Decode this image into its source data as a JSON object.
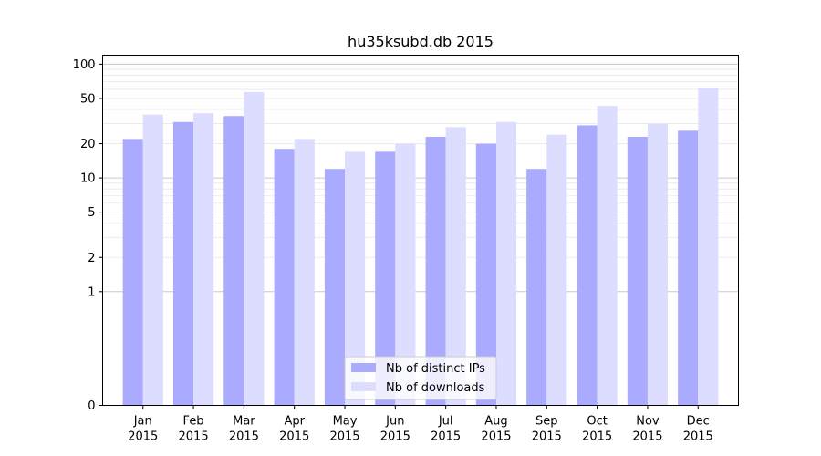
{
  "chart_data": {
    "type": "bar",
    "title": "hu35ksubd.db 2015",
    "xlabel": "",
    "ylabel": "",
    "y_scale": "symlog",
    "ylim": [
      0,
      120
    ],
    "y_ticks": [
      0,
      1,
      2,
      5,
      10,
      20,
      50,
      100
    ],
    "grid": "y",
    "legend_position": "bottom-center",
    "categories": [
      [
        "Jan",
        "2015"
      ],
      [
        "Feb",
        "2015"
      ],
      [
        "Mar",
        "2015"
      ],
      [
        "Apr",
        "2015"
      ],
      [
        "May",
        "2015"
      ],
      [
        "Jun",
        "2015"
      ],
      [
        "Jul",
        "2015"
      ],
      [
        "Aug",
        "2015"
      ],
      [
        "Sep",
        "2015"
      ],
      [
        "Oct",
        "2015"
      ],
      [
        "Nov",
        "2015"
      ],
      [
        "Dec",
        "2015"
      ]
    ],
    "series": [
      {
        "name": "Nb of distinct IPs",
        "color": "#aaaaff",
        "values": [
          22,
          31,
          35,
          18,
          12,
          17,
          23,
          20,
          12,
          29,
          23,
          26
        ]
      },
      {
        "name": "Nb of downloads",
        "color": "#ddddff",
        "values": [
          36,
          37,
          57,
          22,
          17,
          20,
          28,
          31,
          24,
          43,
          30,
          62
        ]
      }
    ]
  }
}
